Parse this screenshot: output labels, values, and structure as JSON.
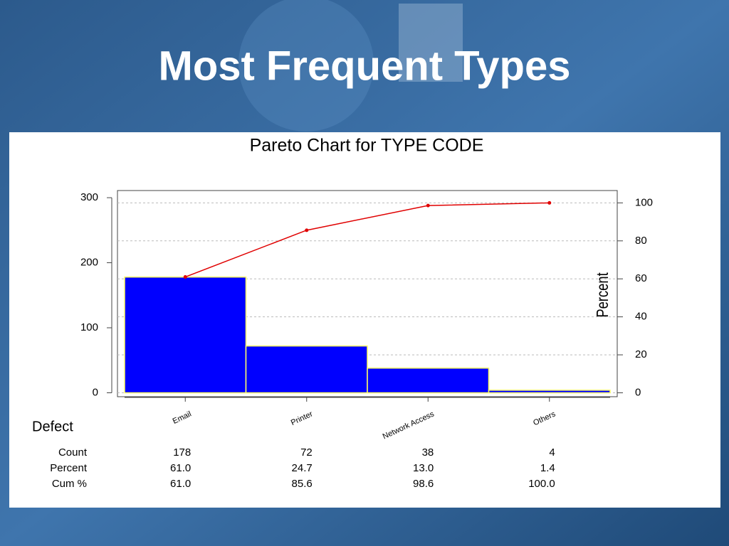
{
  "slide_title": "Most Frequent Types",
  "chart_data": {
    "type": "pareto",
    "title": "Pareto Chart for TYPE CODE",
    "x_label": "Defect",
    "y2_label": "Percent",
    "categories": [
      "Email",
      "Printer",
      "Network Access",
      "Others"
    ],
    "series": [
      {
        "name": "Count",
        "color": "#0000ff",
        "values": [
          178,
          72,
          38,
          4
        ]
      },
      {
        "name": "Percent",
        "values": [
          61.0,
          24.7,
          13.0,
          1.4
        ],
        "value_labels": [
          "61.0",
          "24.7",
          "13.0",
          "1.4"
        ]
      },
      {
        "name": "Cum %",
        "color": "#e00000",
        "axis": "y2",
        "values": [
          61.0,
          85.6,
          98.6,
          100.0
        ],
        "value_labels": [
          "61.0",
          "85.6",
          "98.6",
          "100.0"
        ]
      }
    ],
    "ylim": [
      -6,
      311
    ],
    "yticks": [
      0,
      100,
      200,
      300
    ],
    "y2lim": [
      -2.05,
      106.5
    ],
    "y2ticks": [
      0,
      20,
      40,
      60,
      80,
      100
    ],
    "grid": true
  }
}
